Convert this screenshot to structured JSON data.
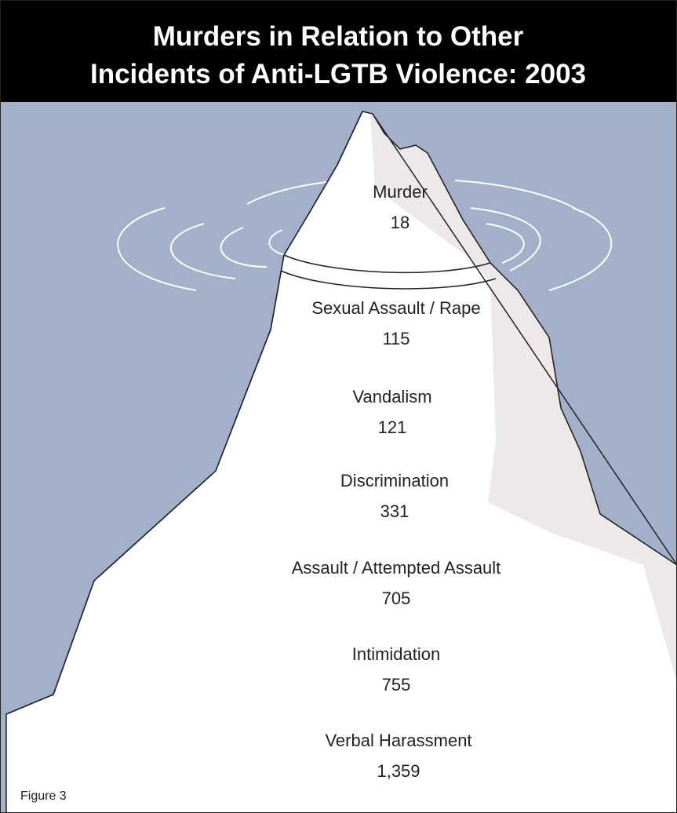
{
  "title": [
    "Murders in Relation to Other",
    "Incidents of Anti-LGTB Violence: 2003"
  ],
  "items": [
    {
      "label": "Murder",
      "value": "18"
    },
    {
      "label": "Sexual Assault / Rape",
      "value": "115"
    },
    {
      "label": "Vandalism",
      "value": "121"
    },
    {
      "label": "Discrimination",
      "value": "331"
    },
    {
      "label": "Assault / Attempted Assault",
      "value": "705"
    },
    {
      "label": "Intimidation",
      "value": "755"
    },
    {
      "label": "Verbal Harassment",
      "value": "1,359"
    }
  ],
  "caption": "Figure 3"
}
